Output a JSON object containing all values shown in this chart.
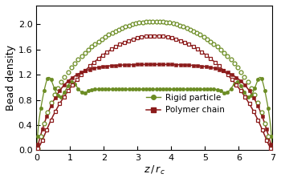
{
  "title": "",
  "xlabel": "$z\\,/\\,r_c$",
  "ylabel": "Bead density",
  "xlim": [
    0,
    7
  ],
  "ylim": [
    0,
    2.3
  ],
  "xticks": [
    0,
    1,
    2,
    3,
    4,
    5,
    6,
    7
  ],
  "yticks": [
    0,
    0.4,
    0.8,
    1.2,
    1.6,
    2.0
  ],
  "green_color": "#6b8c23",
  "red_color": "#8b1a1a",
  "legend_entries": [
    "Rigid particle",
    "Polymer chain"
  ],
  "figsize": [
    3.5,
    2.27
  ],
  "dpi": 100
}
